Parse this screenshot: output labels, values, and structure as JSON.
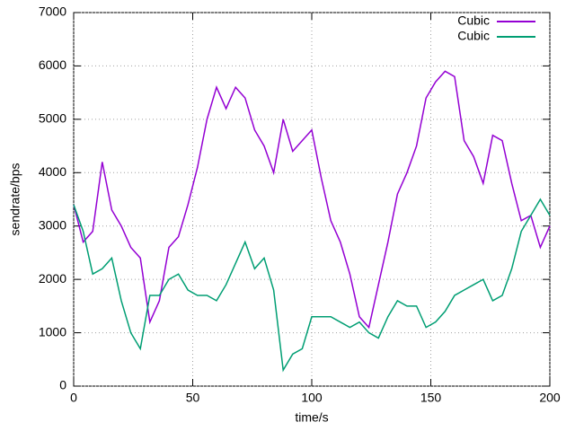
{
  "chart_data": {
    "type": "line",
    "x_label": "time/s",
    "y_label": "sendrate/bps",
    "x": [
      0,
      4,
      8,
      12,
      16,
      20,
      24,
      28,
      32,
      36,
      40,
      44,
      48,
      52,
      56,
      60,
      64,
      68,
      72,
      76,
      80,
      84,
      88,
      92,
      96,
      100,
      104,
      108,
      112,
      116,
      120,
      124,
      128,
      132,
      136,
      140,
      144,
      148,
      152,
      156,
      160,
      164,
      168,
      172,
      176,
      180,
      184,
      188,
      192,
      196,
      200
    ],
    "series": [
      {
        "name": "Cubic",
        "color": "#9400d3",
        "values": [
          3400,
          2700,
          2900,
          4200,
          3300,
          3000,
          2600,
          2400,
          1200,
          1600,
          2600,
          2800,
          3400,
          4100,
          5000,
          5600,
          5200,
          5600,
          5400,
          4800,
          4500,
          4000,
          5000,
          4400,
          4600,
          4800,
          3900,
          3100,
          2700,
          2100,
          1300,
          1100,
          1900,
          2700,
          3600,
          4000,
          4500,
          5400,
          5700,
          5900,
          5800,
          4600,
          4300,
          3800,
          4700,
          4600,
          3800,
          3100,
          3200,
          2600,
          3000
        ]
      },
      {
        "name": "Cubic",
        "color": "#009e73",
        "values": [
          3400,
          2900,
          2100,
          2200,
          2400,
          1600,
          1000,
          700,
          1700,
          1700,
          2000,
          2100,
          1800,
          1700,
          1700,
          1600,
          1900,
          2300,
          2700,
          2200,
          2400,
          1800,
          300,
          600,
          700,
          1300,
          1300,
          1300,
          1200,
          1100,
          1200,
          1000,
          900,
          1300,
          1600,
          1500,
          1500,
          1100,
          1200,
          1400,
          1700,
          1800,
          1900,
          2000,
          1600,
          1700,
          2200,
          2900,
          3200,
          3500,
          3200
        ]
      }
    ],
    "xlim": [
      0,
      200
    ],
    "xticks": [
      0,
      50,
      100,
      150,
      200
    ],
    "ylim": [
      0,
      7000
    ],
    "yticks": [
      0,
      1000,
      2000,
      3000,
      4000,
      5000,
      6000,
      7000
    ],
    "grid": true,
    "legend": "top-right"
  }
}
